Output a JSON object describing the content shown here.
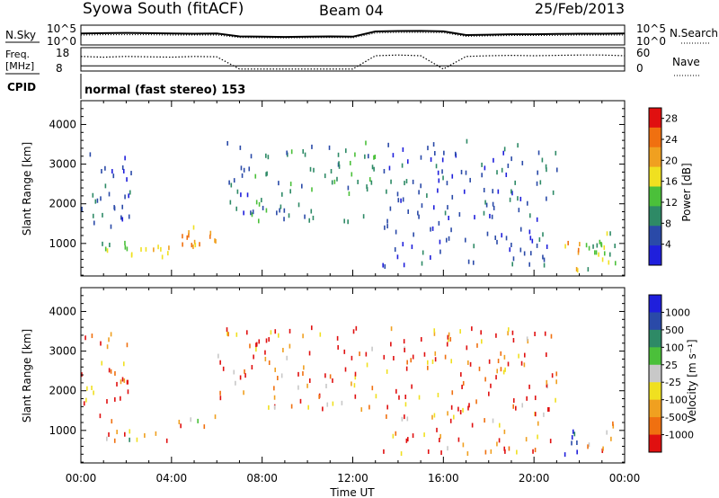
{
  "header": {
    "title": "Syowa South (fitACF)",
    "beam": "Beam 04",
    "date": "25/Feb/2013"
  },
  "aux_labels": {
    "nsky": "N.Sky",
    "nsearch": "N.Search",
    "freq": "Freq.",
    "freq_unit": "[MHz]",
    "nave": "Nave",
    "cpid": "CPID",
    "cpid_text": "normal (fast stereo) 153",
    "noise_left_ticks": [
      "10^5",
      "10^0"
    ],
    "noise_right_ticks": [
      "10^5",
      "10^0"
    ],
    "freq_left_ticks": [
      "18",
      "8"
    ],
    "nave_right_ticks": [
      "60",
      "0"
    ],
    "nsearch_style": "dotted",
    "nave_style": "dotted"
  },
  "x_axis": {
    "label": "Time UT",
    "ticks": [
      "00:00",
      "04:00",
      "08:00",
      "12:00",
      "16:00",
      "20:00",
      "00:00"
    ]
  },
  "colors": {
    "power_scale": [
      "#1f1fdc",
      "#2a4aa8",
      "#2e8a66",
      "#4bc03a",
      "#f0e020",
      "#f0a020",
      "#f07010",
      "#e01010"
    ],
    "velocity_scale": [
      "#e01010",
      "#f07010",
      "#f0a020",
      "#f0e020",
      "#c8c8c8",
      "#4bc03a",
      "#2e8a66",
      "#2a4aa8",
      "#1f1fdc"
    ]
  },
  "chart_data": [
    {
      "type": "line",
      "name": "noise",
      "x": [
        0,
        1,
        2,
        3,
        4,
        5,
        6,
        7,
        8,
        9,
        10,
        11,
        12,
        13,
        14,
        15,
        16,
        17,
        18,
        19,
        20,
        21,
        22,
        23,
        24
      ],
      "series": [
        {
          "name": "N.Sky",
          "style": "solid",
          "values": [
            0.6,
            0.62,
            0.63,
            0.62,
            0.6,
            0.58,
            0.6,
            0.42,
            0.4,
            0.38,
            0.4,
            0.42,
            0.4,
            0.72,
            0.75,
            0.76,
            0.73,
            0.5,
            0.52,
            0.55,
            0.55,
            0.57,
            0.58,
            0.58,
            0.6
          ]
        },
        {
          "name": "N.Search",
          "style": "dotted",
          "values": [
            0.5,
            0.52,
            0.52,
            0.52,
            0.5,
            0.5,
            0.5,
            0.35,
            0.33,
            0.32,
            0.33,
            0.35,
            0.33,
            0.62,
            0.66,
            0.66,
            0.64,
            0.42,
            0.45,
            0.47,
            0.47,
            0.48,
            0.5,
            0.5,
            0.5
          ]
        }
      ]
    },
    {
      "type": "line",
      "name": "frequency_nave",
      "x": [
        0,
        1,
        2,
        3,
        4,
        5,
        6,
        7,
        8,
        9,
        10,
        11,
        12,
        13,
        14,
        15,
        16,
        17,
        18,
        19,
        20,
        21,
        22,
        23,
        24
      ],
      "series": [
        {
          "name": "Freq.",
          "style": "solid",
          "values": [
            10,
            10,
            10,
            10,
            10,
            10,
            10,
            10,
            10,
            10,
            10,
            10,
            10,
            10,
            10,
            10,
            10,
            10,
            10,
            10,
            10,
            10,
            10,
            10,
            10
          ]
        },
        {
          "name": "Nave",
          "style": "dotted",
          "values": [
            38,
            36,
            38,
            37,
            36,
            38,
            37,
            3,
            3,
            3,
            3,
            3,
            3,
            40,
            42,
            40,
            3,
            38,
            40,
            41,
            40,
            41,
            42,
            42,
            40
          ]
        }
      ]
    },
    {
      "type": "heatmap",
      "name": "power",
      "xlabel": "Time UT",
      "ylabel": "Slant Range [km]",
      "xlim": [
        0,
        24
      ],
      "ylim": [
        180,
        4600
      ],
      "x_ticks": [
        "00:00",
        "04:00",
        "08:00",
        "12:00",
        "16:00",
        "20:00",
        "00:00"
      ],
      "y_ticks": [
        1000,
        2000,
        3000,
        4000
      ],
      "colorbar": {
        "label": "Power [dB]",
        "ticks": [
          4,
          8,
          12,
          16,
          20,
          24,
          28
        ],
        "range": [
          0,
          30
        ]
      },
      "regions": [
        {
          "x": [
            0,
            2.2
          ],
          "y": [
            1200,
            3500
          ],
          "level": 1
        },
        {
          "x": [
            0.8,
            2.2
          ],
          "y": [
            650,
            1000
          ],
          "level": 3
        },
        {
          "x": [
            2.2,
            4.2
          ],
          "y": [
            600,
            950
          ],
          "level": 4
        },
        {
          "x": [
            4.2,
            6.3
          ],
          "y": [
            900,
            1400
          ],
          "level": 5
        },
        {
          "x": [
            6.0,
            7.5
          ],
          "y": [
            1700,
            3600
          ],
          "level": 1
        },
        {
          "x": [
            7.5,
            13.0
          ],
          "y": [
            1500,
            3600
          ],
          "level": 2
        },
        {
          "x": [
            13.3,
            21.0
          ],
          "y": [
            400,
            3600
          ],
          "level": 1
        },
        {
          "x": [
            21.3,
            22.0
          ],
          "y": [
            300,
            1000
          ],
          "level": 5
        },
        {
          "x": [
            22.2,
            23.6
          ],
          "y": [
            300,
            1300
          ],
          "level": 3
        }
      ]
    },
    {
      "type": "heatmap",
      "name": "velocity",
      "xlabel": "Time UT",
      "ylabel": "Slant Range [km]",
      "xlim": [
        0,
        24
      ],
      "ylim": [
        180,
        4600
      ],
      "x_ticks": [
        "00:00",
        "04:00",
        "08:00",
        "12:00",
        "16:00",
        "20:00",
        "00:00"
      ],
      "y_ticks": [
        1000,
        2000,
        3000,
        4000
      ],
      "colorbar": {
        "label": "Velocity [m s⁻¹]",
        "ticks": [
          "1000",
          "500",
          "100",
          "25",
          "-25",
          "-100",
          "-500",
          "-1000"
        ],
        "range": [
          -1000,
          1000
        ]
      },
      "regions": [
        {
          "x": [
            0,
            2.2
          ],
          "y": [
            1200,
            3500
          ],
          "level": 1
        },
        {
          "x": [
            0.8,
            2.2
          ],
          "y": [
            650,
            1000
          ],
          "level": 3
        },
        {
          "x": [
            2.2,
            4.2
          ],
          "y": [
            600,
            950
          ],
          "level": 2
        },
        {
          "x": [
            4.2,
            6.3
          ],
          "y": [
            900,
            1400
          ],
          "level": 2
        },
        {
          "x": [
            6.0,
            7.5
          ],
          "y": [
            1700,
            3600
          ],
          "level": 1
        },
        {
          "x": [
            7.5,
            13.0
          ],
          "y": [
            1500,
            3600
          ],
          "level": 1
        },
        {
          "x": [
            13.3,
            21.0
          ],
          "y": [
            400,
            3600
          ],
          "level": 1
        },
        {
          "x": [
            21.3,
            22.0
          ],
          "y": [
            300,
            1000
          ],
          "level": 7
        },
        {
          "x": [
            22.2,
            23.6
          ],
          "y": [
            300,
            1300
          ],
          "level": 2
        }
      ]
    }
  ]
}
